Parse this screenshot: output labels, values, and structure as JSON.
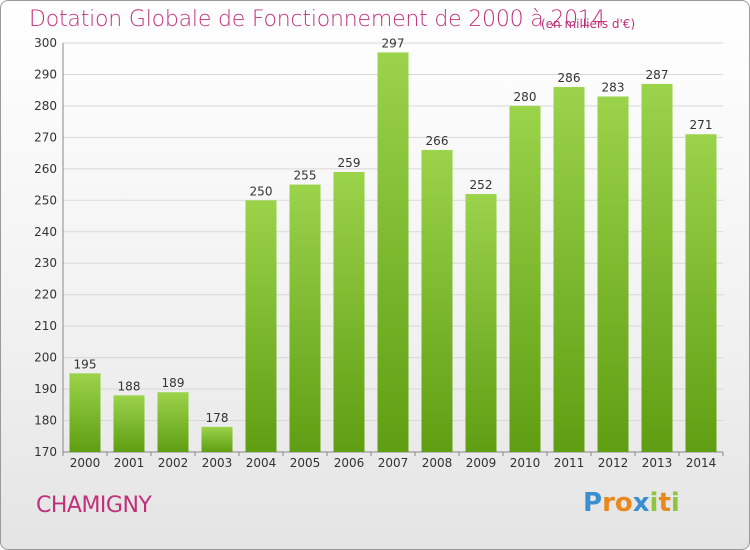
{
  "header": {
    "title": "Dotation Globale de Fonctionnement de 2000 à 2014",
    "subtitle": "(en milliers d'€)"
  },
  "footer": {
    "commune": "CHAMIGNY",
    "logo": "Proxiti"
  },
  "colors": {
    "accent": "#c0307a",
    "bar_top": "#9bd34a",
    "bar_bottom": "#5f9e12",
    "grid": "#d8d8d8"
  },
  "chart_data": {
    "type": "bar",
    "title": "Dotation Globale de Fonctionnement de 2000 à 2014",
    "subtitle": "(en milliers d'€)",
    "xlabel": "",
    "ylabel": "",
    "categories": [
      "2000",
      "2001",
      "2002",
      "2003",
      "2004",
      "2005",
      "2006",
      "2007",
      "2008",
      "2009",
      "2010",
      "2011",
      "2012",
      "2013",
      "2014"
    ],
    "values": [
      195,
      188,
      189,
      178,
      250,
      255,
      259,
      297,
      266,
      252,
      280,
      286,
      283,
      287,
      271
    ],
    "ylim": [
      170,
      300
    ],
    "yticks": [
      170,
      180,
      190,
      200,
      210,
      220,
      230,
      240,
      250,
      260,
      270,
      280,
      290,
      300
    ],
    "grid": true,
    "data_labels": true
  }
}
